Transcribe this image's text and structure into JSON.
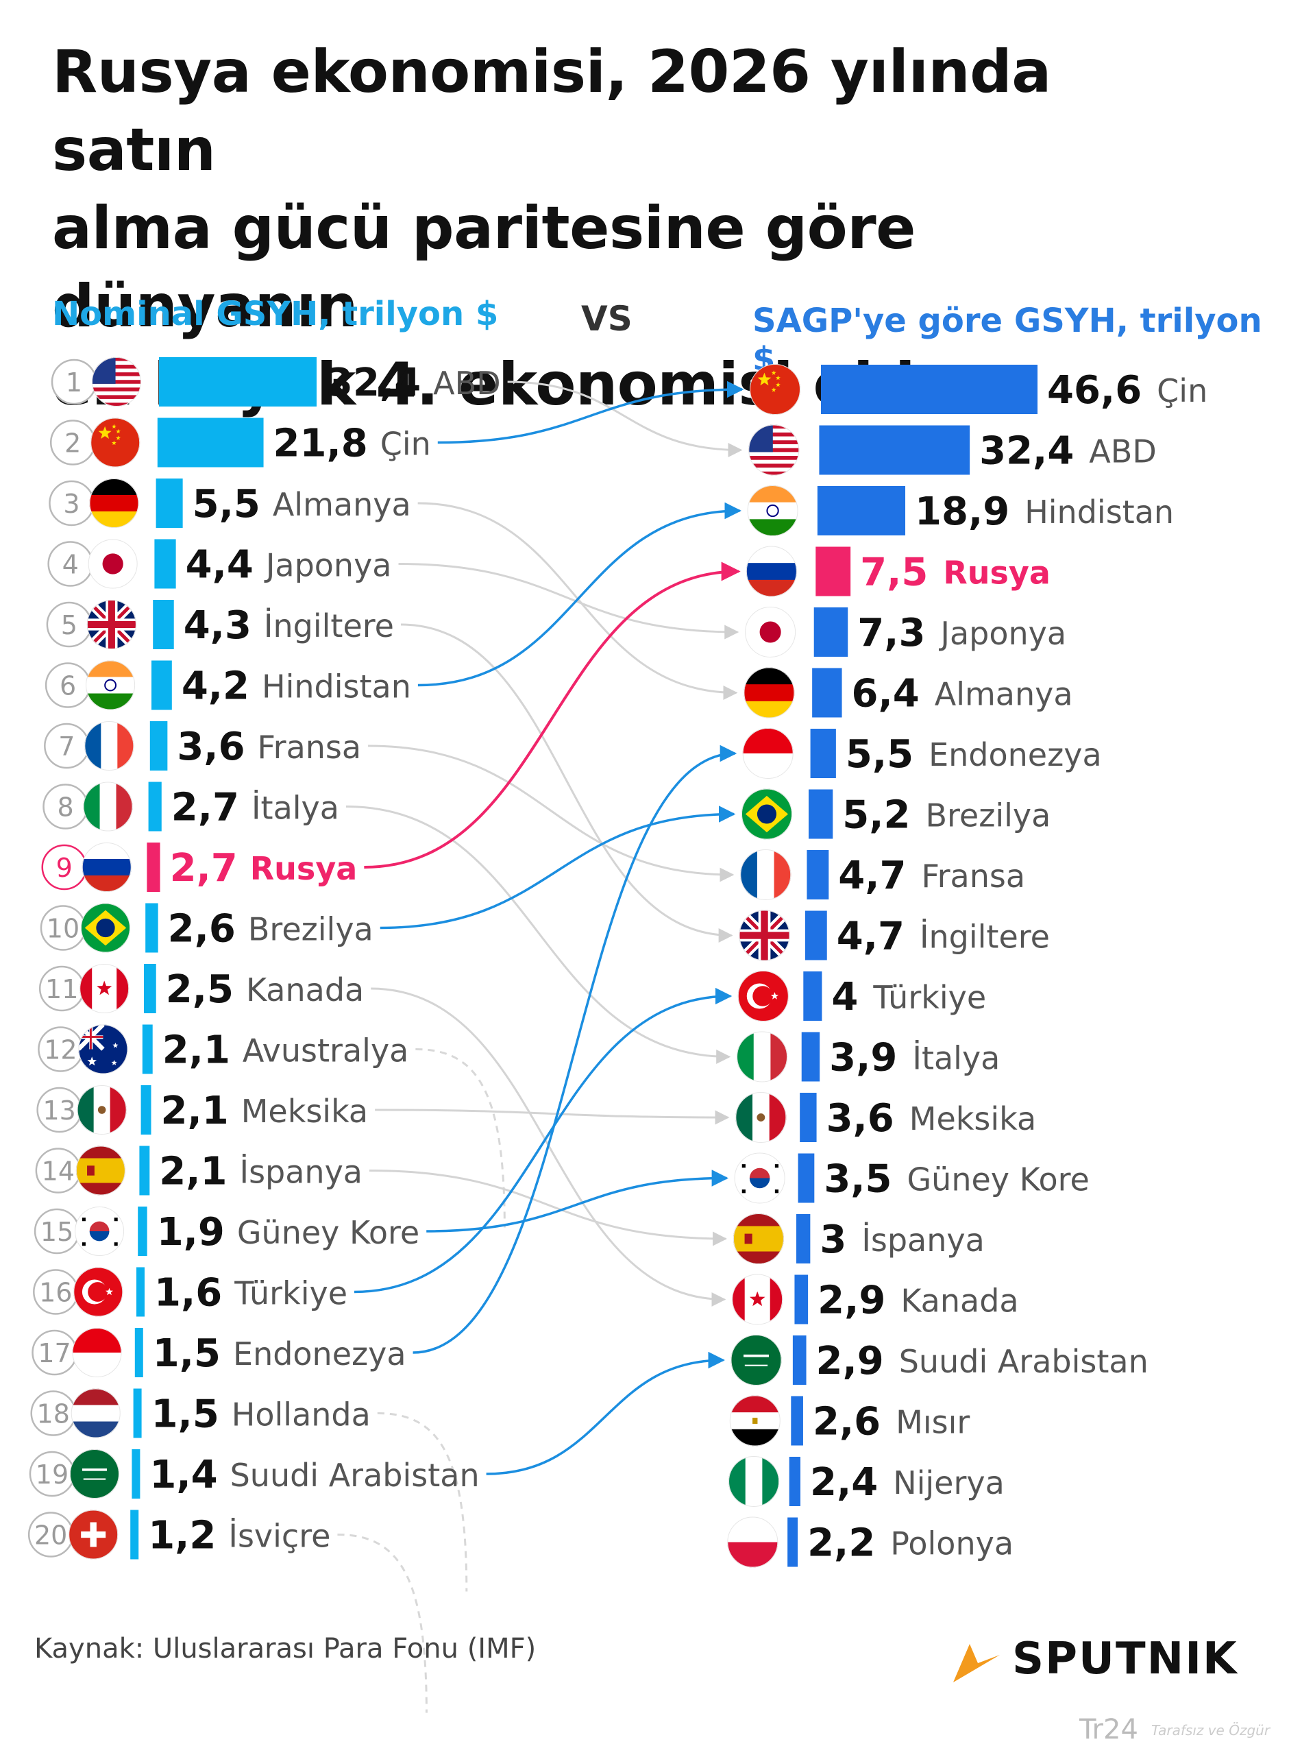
{
  "title": [
    "Rusya ekonomisi, 2026 yılında satın",
    "alma gücü paritesine göre dünyanın",
    "en büyük 4. ekonomisi oldu"
  ],
  "left_header": "Nominal GSYH, trilyon $",
  "vs_label": "VS",
  "right_header": "SAGP'ye göre GSYH, trilyon $",
  "source": "Kaynak: Uluslararası Para Fonu (IMF)",
  "brand": "SPUTNIK",
  "watermark": "Tr24",
  "watermark_tag": "Tarafsız ve Özgür",
  "colors": {
    "left_bar": "#0ab2ef",
    "right_bar": "#1f72e4",
    "highlight": "#f0246a",
    "connector_grey": "#d4d4d4",
    "connector_blue": "#1b8ee0",
    "title": "#111111",
    "brand_accent": "#f39a1d"
  },
  "chart_data": [
    {
      "type": "bar",
      "title": "Nominal GSYH, trilyon $",
      "orientation": "horizontal",
      "rows": [
        {
          "rank": "1",
          "country": "ABD",
          "value": 32.4,
          "label": "32,4",
          "flag": "us-flag"
        },
        {
          "rank": "2",
          "country": "Çin",
          "value": 21.8,
          "label": "21,8",
          "flag": "cn-flag"
        },
        {
          "rank": "3",
          "country": "Almanya",
          "value": 5.5,
          "label": "5,5",
          "flag": "de-flag"
        },
        {
          "rank": "4",
          "country": "Japonya",
          "value": 4.4,
          "label": "4,4",
          "flag": "jp-flag"
        },
        {
          "rank": "5",
          "country": "İngiltere",
          "value": 4.3,
          "label": "4,3",
          "flag": "gb-flag"
        },
        {
          "rank": "6",
          "country": "Hindistan",
          "value": 4.2,
          "label": "4,2",
          "flag": "in-flag"
        },
        {
          "rank": "7",
          "country": "Fransa",
          "value": 3.6,
          "label": "3,6",
          "flag": "fr-flag"
        },
        {
          "rank": "8",
          "country": "İtalya",
          "value": 2.7,
          "label": "2,7",
          "flag": "it-flag"
        },
        {
          "rank": "9",
          "country": "Rusya",
          "value": 2.7,
          "label": "2,7",
          "flag": "ru-flag",
          "highlight": true
        },
        {
          "rank": "10",
          "country": "Brezilya",
          "value": 2.6,
          "label": "2,6",
          "flag": "br-flag"
        },
        {
          "rank": "11",
          "country": "Kanada",
          "value": 2.5,
          "label": "2,5",
          "flag": "ca-flag"
        },
        {
          "rank": "12",
          "country": "Avustralya",
          "value": 2.1,
          "label": "2,1",
          "flag": "au-flag"
        },
        {
          "rank": "13",
          "country": "Meksika",
          "value": 2.1,
          "label": "2,1",
          "flag": "mx-flag"
        },
        {
          "rank": "14",
          "country": "İspanya",
          "value": 2.1,
          "label": "2,1",
          "flag": "es-flag"
        },
        {
          "rank": "15",
          "country": "Güney Kore",
          "value": 1.9,
          "label": "1,9",
          "flag": "kr-flag"
        },
        {
          "rank": "16",
          "country": "Türkiye",
          "value": 1.6,
          "label": "1,6",
          "flag": "tr-flag"
        },
        {
          "rank": "17",
          "country": "Endonezya",
          "value": 1.5,
          "label": "1,5",
          "flag": "id-flag"
        },
        {
          "rank": "18",
          "country": "Hollanda",
          "value": 1.5,
          "label": "1,5",
          "flag": "nl-flag"
        },
        {
          "rank": "19",
          "country": "Suudi Arabistan",
          "value": 1.4,
          "label": "1,4",
          "flag": "sa-flag"
        },
        {
          "rank": "20",
          "country": "İsviçre",
          "value": 1.2,
          "label": "1,2",
          "flag": "ch-flag"
        }
      ]
    },
    {
      "type": "bar",
      "title": "SAGP'ye göre GSYH, trilyon $",
      "orientation": "horizontal",
      "rows": [
        {
          "country": "Çin",
          "value": 46.6,
          "label": "46,6",
          "flag": "cn-flag"
        },
        {
          "country": "ABD",
          "value": 32.4,
          "label": "32,4",
          "flag": "us-flag"
        },
        {
          "country": "Hindistan",
          "value": 18.9,
          "label": "18,9",
          "flag": "in-flag"
        },
        {
          "country": "Rusya",
          "value": 7.5,
          "label": "7,5",
          "flag": "ru-flag",
          "highlight": true
        },
        {
          "country": "Japonya",
          "value": 7.3,
          "label": "7,3",
          "flag": "jp-flag"
        },
        {
          "country": "Almanya",
          "value": 6.4,
          "label": "6,4",
          "flag": "de-flag"
        },
        {
          "country": "Endonezya",
          "value": 5.5,
          "label": "5,5",
          "flag": "id-flag"
        },
        {
          "country": "Brezilya",
          "value": 5.2,
          "label": "5,2",
          "flag": "br-flag"
        },
        {
          "country": "Fransa",
          "value": 4.7,
          "label": "4,7",
          "flag": "fr-flag"
        },
        {
          "country": "İngiltere",
          "value": 4.7,
          "label": "4,7",
          "flag": "gb-flag"
        },
        {
          "country": "Türkiye",
          "value": 4,
          "label": "4",
          "flag": "tr-flag"
        },
        {
          "country": "İtalya",
          "value": 3.9,
          "label": "3,9",
          "flag": "it-flag"
        },
        {
          "country": "Meksika",
          "value": 3.6,
          "label": "3,6",
          "flag": "mx-flag"
        },
        {
          "country": "Güney Kore",
          "value": 3.5,
          "label": "3,5",
          "flag": "kr-flag"
        },
        {
          "country": "İspanya",
          "value": 3,
          "label": "3",
          "flag": "es-flag"
        },
        {
          "country": "Kanada",
          "value": 2.9,
          "label": "2,9",
          "flag": "ca-flag"
        },
        {
          "country": "Suudi Arabistan",
          "value": 2.9,
          "label": "2,9",
          "flag": "sa-flag"
        },
        {
          "country": "Mısır",
          "value": 2.6,
          "label": "2,6",
          "flag": "eg-flag"
        },
        {
          "country": "Nijerya",
          "value": 2.4,
          "label": "2,4",
          "flag": "ng-flag"
        },
        {
          "country": "Polonya",
          "value": 2.2,
          "label": "2,2",
          "flag": "pl-flag"
        }
      ]
    }
  ],
  "connections": [
    {
      "country": "ABD",
      "from_rank": 1,
      "to_rank": 2,
      "style": "grey"
    },
    {
      "country": "Çin",
      "from_rank": 2,
      "to_rank": 1,
      "style": "blue"
    },
    {
      "country": "Almanya",
      "from_rank": 3,
      "to_rank": 6,
      "style": "grey"
    },
    {
      "country": "Japonya",
      "from_rank": 4,
      "to_rank": 5,
      "style": "grey"
    },
    {
      "country": "İngiltere",
      "from_rank": 5,
      "to_rank": 10,
      "style": "grey"
    },
    {
      "country": "Hindistan",
      "from_rank": 6,
      "to_rank": 3,
      "style": "blue"
    },
    {
      "country": "Fransa",
      "from_rank": 7,
      "to_rank": 9,
      "style": "grey"
    },
    {
      "country": "İtalya",
      "from_rank": 8,
      "to_rank": 12,
      "style": "grey"
    },
    {
      "country": "Rusya",
      "from_rank": 9,
      "to_rank": 4,
      "style": "highlight"
    },
    {
      "country": "Brezilya",
      "from_rank": 10,
      "to_rank": 8,
      "style": "blue"
    },
    {
      "country": "Kanada",
      "from_rank": 11,
      "to_rank": 16,
      "style": "grey"
    },
    {
      "country": "Avustralya",
      "from_rank": 12,
      "to_rank": null,
      "style": "dashed"
    },
    {
      "country": "Meksika",
      "from_rank": 13,
      "to_rank": 13,
      "style": "grey"
    },
    {
      "country": "İspanya",
      "from_rank": 14,
      "to_rank": 15,
      "style": "grey"
    },
    {
      "country": "Güney Kore",
      "from_rank": 15,
      "to_rank": 14,
      "style": "blue"
    },
    {
      "country": "Türkiye",
      "from_rank": 16,
      "to_rank": 11,
      "style": "blue"
    },
    {
      "country": "Endonezya",
      "from_rank": 17,
      "to_rank": 7,
      "style": "blue"
    },
    {
      "country": "Hollanda",
      "from_rank": 18,
      "to_rank": null,
      "style": "dashed"
    },
    {
      "country": "Suudi Arabistan",
      "from_rank": 19,
      "to_rank": 17,
      "style": "blue"
    },
    {
      "country": "İsviçre",
      "from_rank": 20,
      "to_rank": null,
      "style": "dashed"
    }
  ]
}
